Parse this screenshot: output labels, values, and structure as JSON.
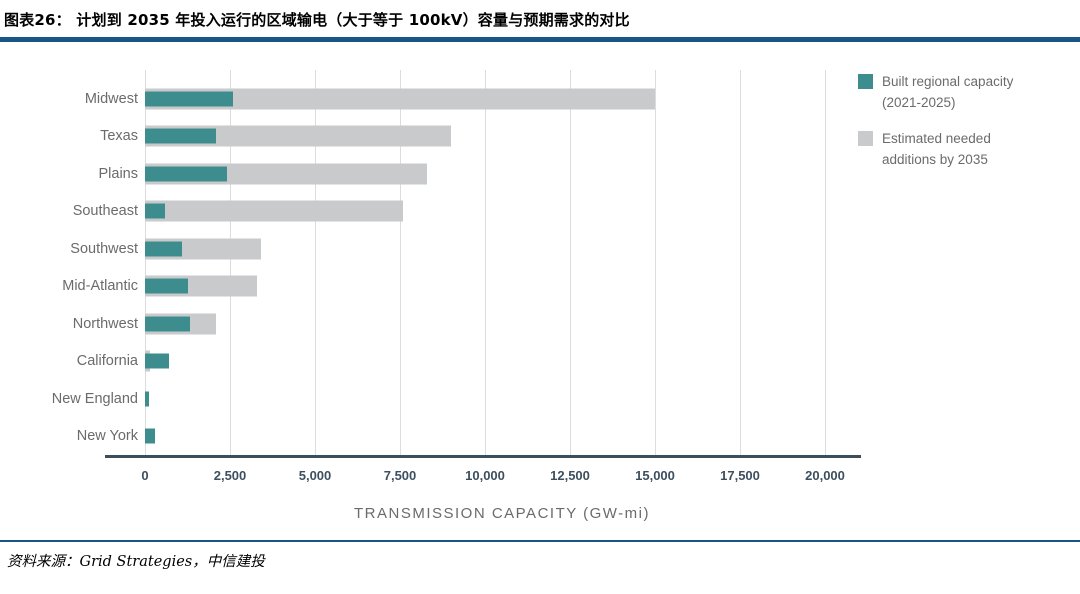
{
  "page": {
    "title": "图表26：  计划到 2035 年投入运行的区域输电（大于等于 100kV）容量与预期需求的对比",
    "source": "资料来源：Grid Strategies，中信建投"
  },
  "colors": {
    "built_teal": "#3E8D8E",
    "needed_gray": "#C9CACC",
    "accent_rule_blue": "#1A5586",
    "axis_line": "#3C4E5C",
    "tick_label": "#3D4F5F",
    "gray_text": "#6B6B6B",
    "gridline": "#DCDCDC"
  },
  "chart_data": {
    "type": "bar",
    "orientation": "horizontal",
    "title": "",
    "xlabel": "TRANSMISSION CAPACITY (GW-mi)",
    "ylabel": "",
    "categories": [
      "Midwest",
      "Texas",
      "Plains",
      "Southeast",
      "Southwest",
      "Mid-Atlantic",
      "Northwest",
      "California",
      "New England",
      "New York"
    ],
    "series": [
      {
        "name": "Built regional capacity (2021-2025)",
        "color": "#3E8D8E",
        "values": [
          2600,
          2100,
          2400,
          600,
          1100,
          1270,
          1330,
          700,
          130,
          280
        ]
      },
      {
        "name": "Estimated needed additions by 2035",
        "color": "#C9CACC",
        "values": [
          15000,
          9000,
          8300,
          7600,
          3400,
          3300,
          2100,
          150,
          0,
          0
        ]
      }
    ],
    "xlim": [
      0,
      21000
    ],
    "xticks": [
      0,
      2500,
      5000,
      7500,
      10000,
      12500,
      15000,
      17500,
      20000
    ],
    "xtick_labels": [
      "0",
      "2,500",
      "5,000",
      "7,500",
      "10,000",
      "12,500",
      "15,000",
      "17,500",
      "20,000"
    ],
    "grid": "vertical-only",
    "legend_position": "top-right",
    "bar_style": "overlapped (built bar drawn over needed bar, both starting at 0)"
  }
}
